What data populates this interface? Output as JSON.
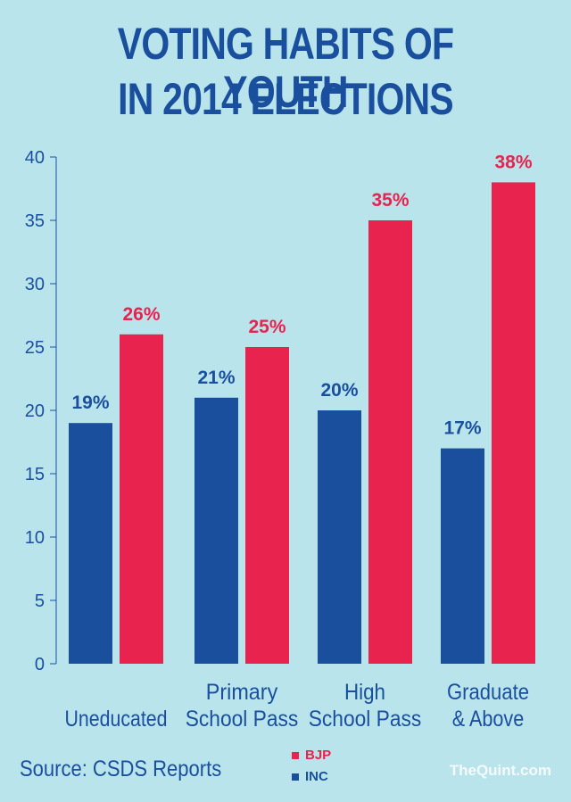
{
  "title_line1": "VOTING HABITS OF YOUTH",
  "title_line2": "IN 2014 ELECTIONS",
  "source": "Source: CSDS Reports",
  "watermark": "TheQuint.com",
  "colors": {
    "background": "#b9e4ec",
    "BJP": "#e8234e",
    "INC": "#1a4f9e",
    "text": "#1a4f9e"
  },
  "chart_data": {
    "type": "bar",
    "categories": [
      [
        "Uneducated"
      ],
      [
        "Primary",
        "School Pass"
      ],
      [
        "High",
        "School Pass"
      ],
      [
        "Graduate",
        "& Above"
      ]
    ],
    "series": [
      {
        "name": "INC",
        "values": [
          19,
          21,
          20,
          17
        ],
        "labels": [
          "19%",
          "21%",
          "20%",
          "17%"
        ]
      },
      {
        "name": "BJP",
        "values": [
          26,
          25,
          35,
          38
        ],
        "labels": [
          "26%",
          "25%",
          "35%",
          "38%"
        ]
      }
    ],
    "ylim": [
      0,
      40
    ],
    "yticks": [
      0,
      5,
      10,
      15,
      20,
      25,
      30,
      35,
      40
    ],
    "legend": [
      {
        "name": "BJP"
      },
      {
        "name": "INC"
      }
    ],
    "legend_position": "bottom-center",
    "grid": false
  }
}
